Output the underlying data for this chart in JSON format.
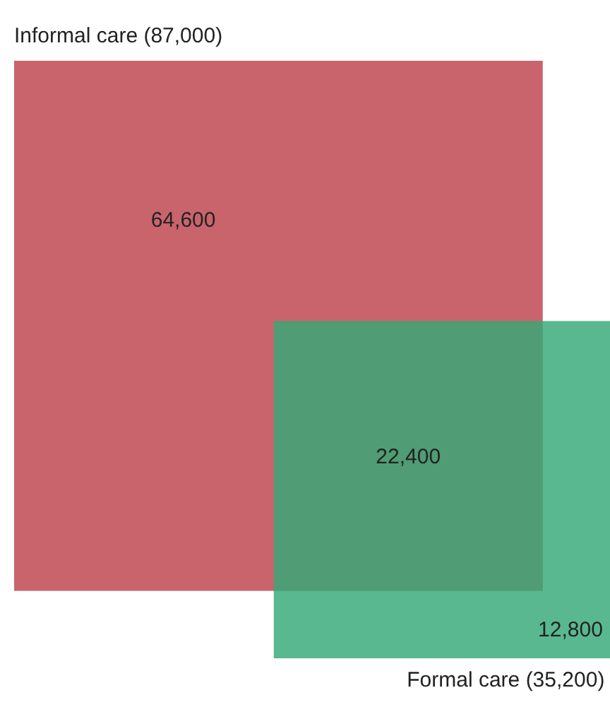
{
  "chart_data": {
    "type": "other",
    "categories": [
      "Informal care",
      "Formal care"
    ],
    "values": [
      87000,
      35200
    ],
    "value_labels": [
      "(87,000)",
      "(35,200)"
    ],
    "colors": [
      "#c9646c",
      "#35a878"
    ],
    "annotations": [
      "64,600",
      "22,400",
      "12,800"
    ]
  }
}
